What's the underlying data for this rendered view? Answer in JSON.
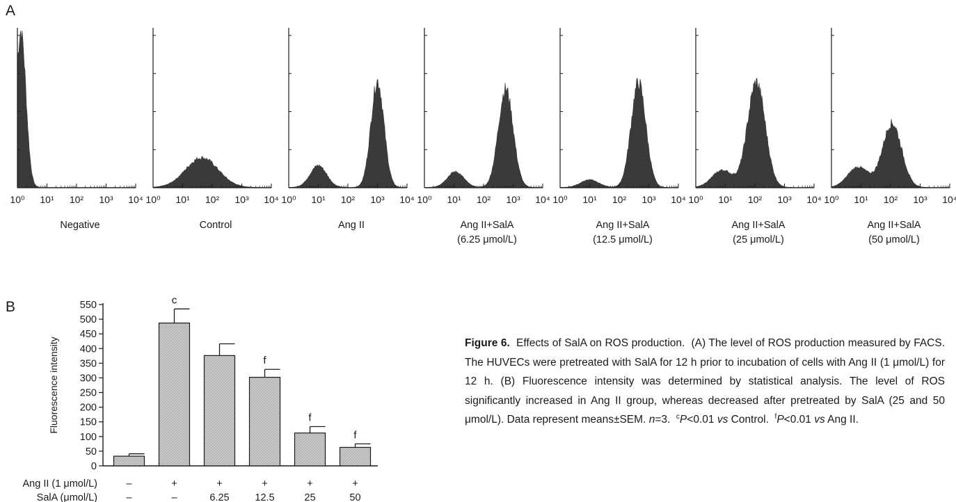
{
  "panel_a_label": "A",
  "panel_b_label": "B",
  "caption": {
    "figure_label": "Figure 6.",
    "title": "Effects of SalA on ROS production.",
    "body": "(A) The level of ROS production measured by FACS. The HUVECs were pretreated with SalA for 12 h prior to incubation of cells with Ang II (1 μmol/L) for 12 h. (B) Fluorescence intensity was determined by statistical analysis. The level of ROS significantly increased in Ang II group, whereas decreased after pretreated by SalA (25 and 50 μmol/L). Data represent means±SEM.",
    "n_label": "n",
    "n_value": "=3.",
    "sig1_sup": "c",
    "sig1_p": "P",
    "sig1_text": "<0.01",
    "sig1_vs": "vs",
    "sig1_ref": "Control.",
    "sig2_sup": "f",
    "sig2_p": "P",
    "sig2_text": "<0.01",
    "sig2_vs": "vs",
    "sig2_ref": "Ang II."
  },
  "colors": {
    "histogram_fill": "#3a3a3a",
    "bar_fill": "#c8c8c8",
    "axis": "#1a1a1a"
  },
  "chart_data": [
    {
      "type": "area",
      "panel": "A",
      "x_scale": "log",
      "x_ticks": [
        "10⁰",
        "10¹",
        "10²",
        "10³",
        "10⁴"
      ],
      "xlim": [
        1,
        10000
      ],
      "histograms": [
        {
          "name_lines": [
            "Negative"
          ],
          "peaks": [
            {
              "center_log": 0.12,
              "width_log": 0.17,
              "height": 1.0
            }
          ]
        },
        {
          "name_lines": [
            "Control"
          ],
          "peaks": [
            {
              "center_log": 1.65,
              "width_log": 0.55,
              "height": 0.19
            }
          ]
        },
        {
          "name_lines": [
            "Ang II"
          ],
          "peaks": [
            {
              "center_log": 1.0,
              "width_log": 0.28,
              "height": 0.14
            },
            {
              "center_log": 3.0,
              "width_log": 0.22,
              "height": 0.68
            }
          ]
        },
        {
          "name_lines": [
            "Ang II+SalA",
            "(6.25 μmol/L)"
          ],
          "peaks": [
            {
              "center_log": 1.05,
              "width_log": 0.28,
              "height": 0.1
            },
            {
              "center_log": 2.75,
              "width_log": 0.25,
              "height": 0.63
            }
          ]
        },
        {
          "name_lines": [
            "Ang II+SalA",
            "(12.5 μmol/L)"
          ],
          "peaks": [
            {
              "center_log": 1.0,
              "width_log": 0.3,
              "height": 0.05
            },
            {
              "center_log": 2.65,
              "width_log": 0.25,
              "height": 0.67
            }
          ]
        },
        {
          "name_lines": [
            "Ang II+SalA",
            "(25 μmol/L)"
          ],
          "peaks": [
            {
              "center_log": 0.9,
              "width_log": 0.35,
              "height": 0.11
            },
            {
              "center_log": 2.05,
              "width_log": 0.3,
              "height": 0.67
            }
          ]
        },
        {
          "name_lines": [
            "Ang II+SalA",
            "(50 μmol/L)"
          ],
          "peaks": [
            {
              "center_log": 0.9,
              "width_log": 0.35,
              "height": 0.13
            },
            {
              "center_log": 2.05,
              "width_log": 0.32,
              "height": 0.41
            }
          ]
        }
      ]
    },
    {
      "type": "bar",
      "panel": "B",
      "ylabel": "Fluorescence intensity",
      "ylim": [
        0,
        550
      ],
      "yticks": [
        0,
        50,
        100,
        150,
        200,
        250,
        300,
        350,
        400,
        450,
        500,
        550
      ],
      "values": [
        33,
        487,
        376,
        302,
        112,
        63
      ],
      "errors": [
        8,
        48,
        40,
        27,
        22,
        12
      ],
      "annotations": [
        "",
        "c",
        "",
        "f",
        "f",
        "f"
      ],
      "row_labels": [
        "Ang II (1 μmol/L)",
        "SalA (μmol/L)"
      ],
      "row_values": [
        [
          "–",
          "+",
          "+",
          "+",
          "+",
          "+"
        ],
        [
          "–",
          "–",
          "6.25",
          "12.5",
          "25",
          "50"
        ]
      ]
    }
  ]
}
